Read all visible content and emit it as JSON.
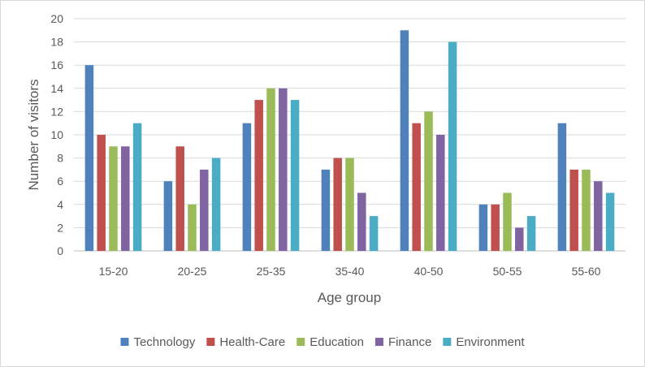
{
  "chart_data": {
    "type": "bar",
    "title": "",
    "xlabel": "Age group",
    "ylabel": "Number of visitors",
    "ylim": [
      0,
      20
    ],
    "yticks": [
      0,
      2,
      4,
      6,
      8,
      10,
      12,
      14,
      16,
      18,
      20
    ],
    "grid": true,
    "legend_position": "bottom",
    "categories": [
      "15-20",
      "20-25",
      "25-35",
      "35-40",
      "40-50",
      "50-55",
      "55-60"
    ],
    "series": [
      {
        "name": "Technology",
        "color": "#4f81bd",
        "values": [
          16,
          6,
          11,
          7,
          19,
          4,
          11
        ]
      },
      {
        "name": "Health-Care",
        "color": "#c0504d",
        "values": [
          10,
          9,
          13,
          8,
          11,
          4,
          7
        ]
      },
      {
        "name": "Education",
        "color": "#9bbb59",
        "values": [
          9,
          4,
          14,
          8,
          12,
          5,
          7
        ]
      },
      {
        "name": "Finance",
        "color": "#8064a2",
        "values": [
          9,
          7,
          14,
          5,
          10,
          2,
          6
        ]
      },
      {
        "name": "Environment",
        "color": "#4bacc6",
        "values": [
          11,
          8,
          13,
          3,
          18,
          3,
          5
        ]
      }
    ]
  }
}
